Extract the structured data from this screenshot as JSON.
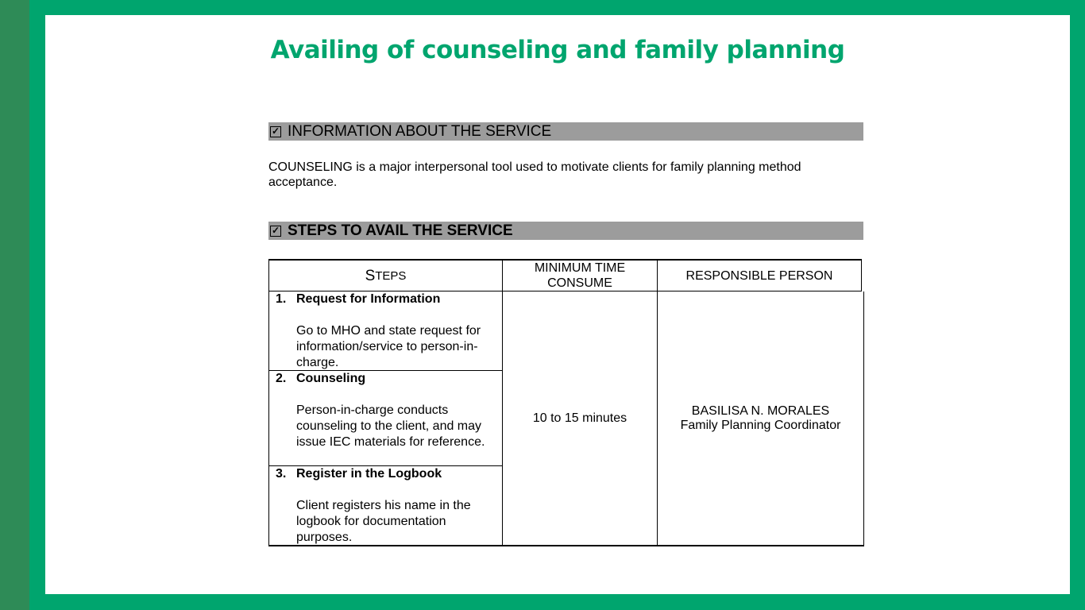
{
  "title": "Availing of counseling and family planning",
  "section_info": {
    "label": "INFORMATION ABOUT THE SERVICE",
    "checkbox": "☑"
  },
  "description": "COUNSELING is a major interpersonal tool used to motivate clients for family planning method acceptance.",
  "section_steps": {
    "label": "STEPS TO AVAIL  THE SERVICE",
    "checkbox": "☑"
  },
  "table": {
    "headers": {
      "steps_first": "S",
      "steps_rest": "TEPS",
      "time": "MINIMUM TIME CONSUME",
      "person": "RESPONSIBLE PERSON"
    },
    "steps": [
      {
        "num": "1.",
        "name": "Request for Information",
        "body": "Go to MHO and state request for information/service to person-in-charge."
      },
      {
        "num": "2.",
        "name": "Counseling",
        "body": "Person-in-charge conducts counseling to the client, and may issue IEC materials for reference."
      },
      {
        "num": "3.",
        "name": "Register in the Logbook",
        "body": "Client registers his name in the logbook for documentation purposes."
      }
    ],
    "time_value": "10 to 15 minutes",
    "person_name": "BASILISA N. MORALES",
    "person_role": "Family Planning Coordinator"
  },
  "colors": {
    "frame": "#00a56e",
    "strip": "#2e8b57",
    "bar": "#9c9c9c"
  }
}
